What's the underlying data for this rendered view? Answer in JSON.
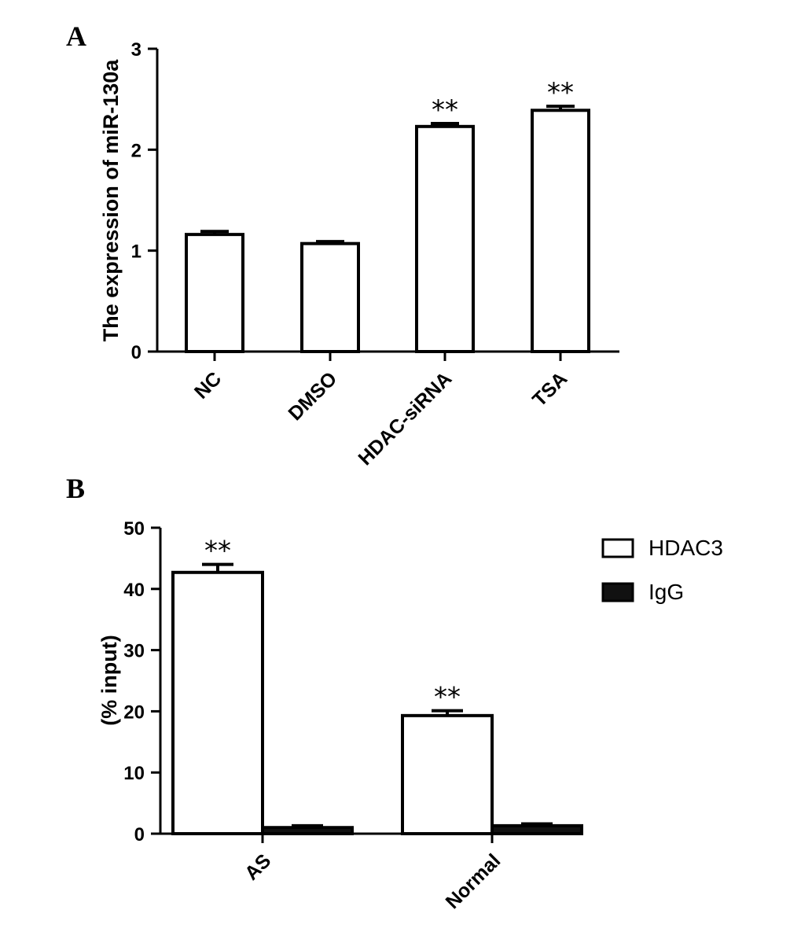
{
  "figure": {
    "panels": [
      "A",
      "B"
    ]
  },
  "chart_data": [
    {
      "type": "bar",
      "panel": "A",
      "ylabel": "The expression of miR-130a",
      "xlabel": "",
      "ylim": [
        0,
        3
      ],
      "yticks": [
        0,
        1,
        2,
        3
      ],
      "categories": [
        "NC",
        "DMSO",
        "HDAC-siRNA",
        "TSA"
      ],
      "values": [
        1.16,
        1.07,
        2.23,
        2.39
      ],
      "errors": [
        0.03,
        0.02,
        0.03,
        0.04
      ],
      "annotations": [
        "",
        "",
        "**",
        "**"
      ],
      "bar_color": "#ffffff",
      "edge_color": "#000000",
      "grid": false
    },
    {
      "type": "bar",
      "panel": "B",
      "ylabel": "(% input)",
      "xlabel": "",
      "ylim": [
        0,
        50
      ],
      "yticks": [
        0,
        10,
        20,
        30,
        40,
        50
      ],
      "categories": [
        "AS",
        "Normal"
      ],
      "series": [
        {
          "name": "HDAC3",
          "values": [
            42.7,
            19.3
          ],
          "errors": [
            1.3,
            0.8
          ],
          "annotations": [
            "**",
            "**"
          ],
          "color": "#ffffff"
        },
        {
          "name": "IgG",
          "values": [
            1.0,
            1.3
          ],
          "errors": [
            0.3,
            0.3
          ],
          "annotations": [
            "",
            ""
          ],
          "color": "#111111"
        }
      ],
      "legend_position": "top-right",
      "grid": false
    }
  ]
}
